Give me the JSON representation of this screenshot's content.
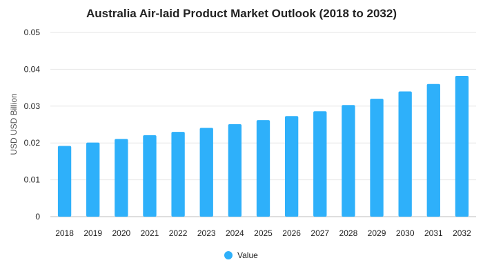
{
  "chart_data": {
    "type": "bar",
    "title": "Australia Air-laid Product Market Outlook (2018 to 2032)",
    "xlabel": "",
    "ylabel": "USD USD Billion",
    "categories": [
      "2018",
      "2019",
      "2020",
      "2021",
      "2022",
      "2023",
      "2024",
      "2025",
      "2026",
      "2027",
      "2028",
      "2029",
      "2030",
      "2031",
      "2032"
    ],
    "series": [
      {
        "name": "Value",
        "values": [
          0.0192,
          0.0201,
          0.0211,
          0.0221,
          0.023,
          0.0241,
          0.0251,
          0.0262,
          0.0273,
          0.0286,
          0.0303,
          0.032,
          0.034,
          0.036,
          0.0382
        ]
      }
    ],
    "ylim": [
      0,
      0.05
    ],
    "yticks": [
      "0",
      "0.01",
      "0.02",
      "0.03",
      "0.04",
      "0.05"
    ],
    "ytick_values": [
      0,
      0.01,
      0.02,
      0.03,
      0.04,
      0.05
    ],
    "grid": true,
    "legend": "bottom",
    "colors": {
      "bar": "#2eb0fa",
      "grid": "#e6e6e6",
      "axis": "#bdbdbd"
    }
  }
}
